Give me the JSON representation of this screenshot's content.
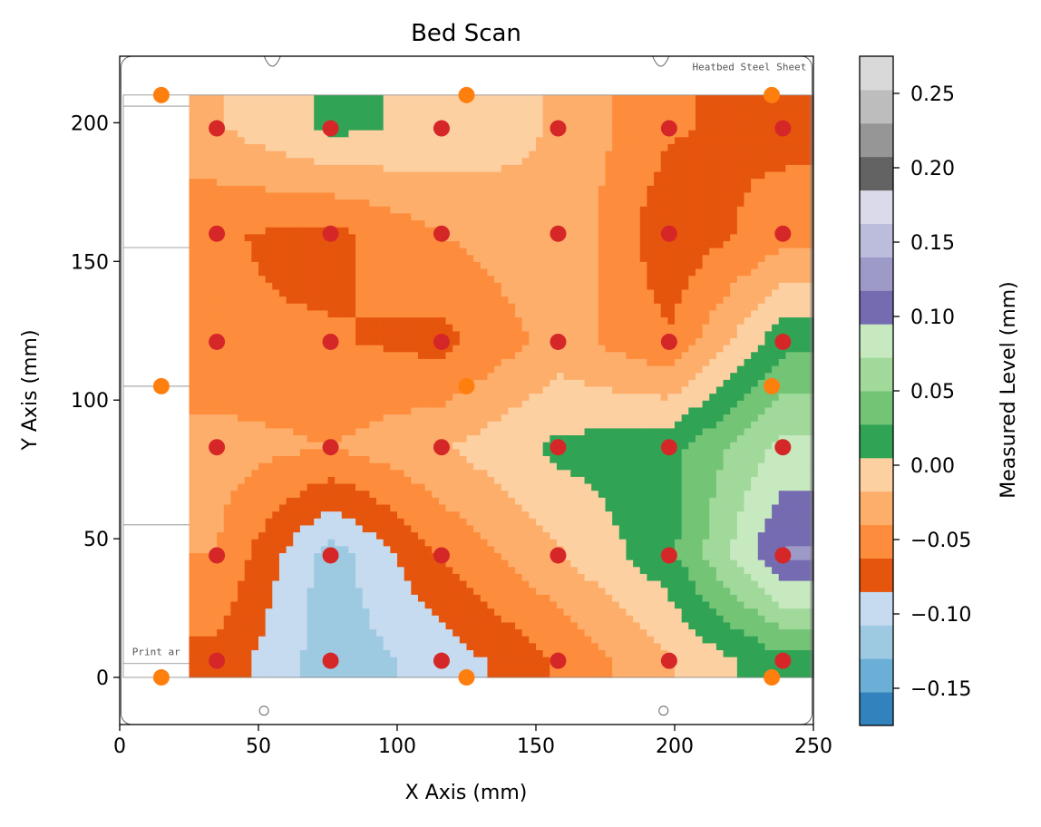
{
  "chart_data": {
    "type": "heatmap",
    "title": "Bed Scan",
    "xlabel": "X Axis (mm)",
    "ylabel": "Y Axis (mm)",
    "colorbar_label": "Measured Level (mm)",
    "xlim": [
      0,
      250
    ],
    "ylim": [
      -17,
      224
    ],
    "xticks": [
      0,
      50,
      100,
      150,
      200,
      250
    ],
    "yticks": [
      0,
      50,
      100,
      150,
      200
    ],
    "clim": [
      -0.175,
      0.275
    ],
    "colorbar_ticks": [
      -0.15,
      -0.1,
      -0.05,
      0.0,
      0.05,
      0.1,
      0.15,
      0.2,
      0.25
    ],
    "colorbar_tick_labels": [
      "−0.15",
      "−0.10",
      "−0.05",
      "0.00",
      "0.05",
      "0.10",
      "0.15",
      "0.20",
      "0.25"
    ],
    "color_levels": [
      "#3182bd",
      "#6baed6",
      "#9ecae1",
      "#c6dbef",
      "#e6550d",
      "#fd8d3c",
      "#fdae6b",
      "#fdd0a2",
      "#31a354",
      "#74c476",
      "#a1d99b",
      "#c7e9c0",
      "#756bb1",
      "#9e9ac8",
      "#bcbddc",
      "#dadaeb",
      "#636363",
      "#969696",
      "#bdbdbd",
      "#d9d9d9"
    ],
    "bed_labels": [
      "Heatbed Steel Sheet",
      "Print ar"
    ],
    "probe_points": {
      "name": "probe points",
      "color": "#d62728",
      "x": [
        35,
        76,
        116,
        158,
        198,
        239
      ],
      "y": [
        6,
        44,
        83,
        121,
        160,
        198
      ],
      "z": [
        [
          -0.07,
          -0.12,
          -0.1,
          -0.06,
          -0.02,
          0.02
        ],
        [
          -0.04,
          -0.12,
          -0.06,
          -0.02,
          0.02,
          0.12
        ],
        [
          -0.03,
          -0.04,
          -0.02,
          0.01,
          0.02,
          0.08
        ],
        [
          -0.06,
          -0.06,
          -0.07,
          -0.03,
          -0.06,
          0.02
        ],
        [
          -0.06,
          -0.07,
          -0.04,
          -0.02,
          -0.08,
          -0.05
        ],
        [
          -0.02,
          0.01,
          0.0,
          -0.02,
          -0.06,
          -0.07
        ]
      ]
    },
    "reference_points": {
      "name": "reference points",
      "color": "#ff7f0e",
      "points": [
        [
          15,
          210
        ],
        [
          125,
          210
        ],
        [
          235,
          210
        ],
        [
          15,
          105
        ],
        [
          125,
          105
        ],
        [
          235,
          105
        ],
        [
          15,
          0
        ],
        [
          125,
          0
        ],
        [
          235,
          0
        ]
      ]
    }
  }
}
